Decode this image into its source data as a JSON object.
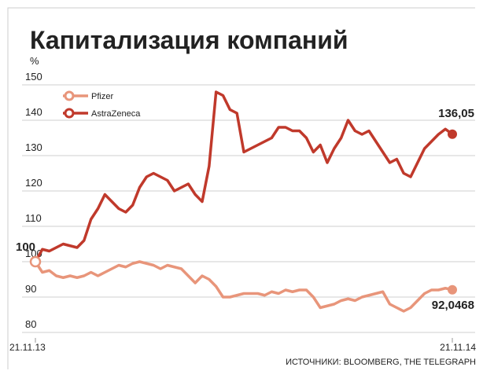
{
  "chart_data": {
    "type": "line",
    "title": "Капитализация компаний",
    "y_unit": "%",
    "source": "ИСТОЧНИКИ: BLOOMBERG, THE TELEGRAPH",
    "xlim": [
      0,
      60
    ],
    "xticks": [
      {
        "value": 0,
        "label": "21.11.13"
      },
      {
        "value": 60,
        "label": "21.11.14"
      }
    ],
    "ylim": [
      78,
      152
    ],
    "yticks": [
      80,
      90,
      100,
      110,
      120,
      130,
      140,
      150
    ],
    "grid": true,
    "legend": "top-left",
    "series": [
      {
        "name": "Pfizer",
        "color": "#e8957a",
        "values": [
          100,
          97,
          97.5,
          96,
          95.5,
          96,
          95.5,
          96,
          97,
          96,
          97,
          98,
          99,
          98.5,
          99.5,
          100,
          99.5,
          99,
          98,
          99,
          98.5,
          98,
          96,
          94,
          96,
          95,
          93,
          90,
          90,
          90.5,
          91,
          91,
          91,
          90.5,
          91.5,
          91,
          92,
          91.5,
          92,
          92,
          90,
          87,
          87.5,
          88,
          89,
          89.5,
          89,
          90,
          90.5,
          91,
          91.5,
          88,
          87,
          86,
          87,
          89,
          91,
          92,
          92,
          92.5,
          92.0468
        ],
        "value_labels": [
          null,
          null,
          null,
          null,
          null,
          null,
          null,
          null,
          null,
          null,
          null,
          null,
          null,
          null,
          null,
          null,
          null,
          null,
          null,
          null,
          null,
          null,
          null,
          null,
          null,
          null,
          null,
          null,
          null,
          null,
          null,
          null,
          null,
          null,
          null,
          null,
          null,
          null,
          null,
          null,
          null,
          null,
          null,
          null,
          null,
          null,
          null,
          null,
          null,
          null,
          null,
          null,
          null,
          null,
          null,
          null,
          null,
          null,
          null,
          null,
          "92,0468"
        ]
      },
      {
        "name": "AstraZeneca",
        "color": "#c0392b",
        "values": [
          100,
          103.5,
          103,
          104,
          105,
          104.5,
          104,
          106,
          112,
          115,
          119,
          117,
          115,
          114,
          116,
          121,
          124,
          125,
          124,
          123,
          120,
          121,
          122,
          119,
          117,
          127,
          148,
          147,
          143,
          142,
          131,
          132,
          133,
          134,
          135,
          138,
          138,
          137,
          137,
          135,
          131,
          133,
          128,
          132,
          135,
          140,
          137,
          136,
          137,
          134,
          131,
          128,
          129,
          125,
          124,
          128,
          132,
          134,
          136,
          137.5,
          136.05
        ],
        "value_labels": [
          "100",
          null,
          null,
          null,
          null,
          null,
          null,
          null,
          null,
          null,
          null,
          null,
          null,
          null,
          null,
          null,
          null,
          null,
          null,
          null,
          null,
          null,
          null,
          null,
          null,
          null,
          null,
          null,
          null,
          null,
          null,
          null,
          null,
          null,
          null,
          null,
          null,
          null,
          null,
          null,
          null,
          null,
          null,
          null,
          null,
          null,
          null,
          null,
          null,
          null,
          null,
          null,
          null,
          null,
          null,
          null,
          null,
          null,
          null,
          null,
          "136,05"
        ]
      }
    ]
  }
}
